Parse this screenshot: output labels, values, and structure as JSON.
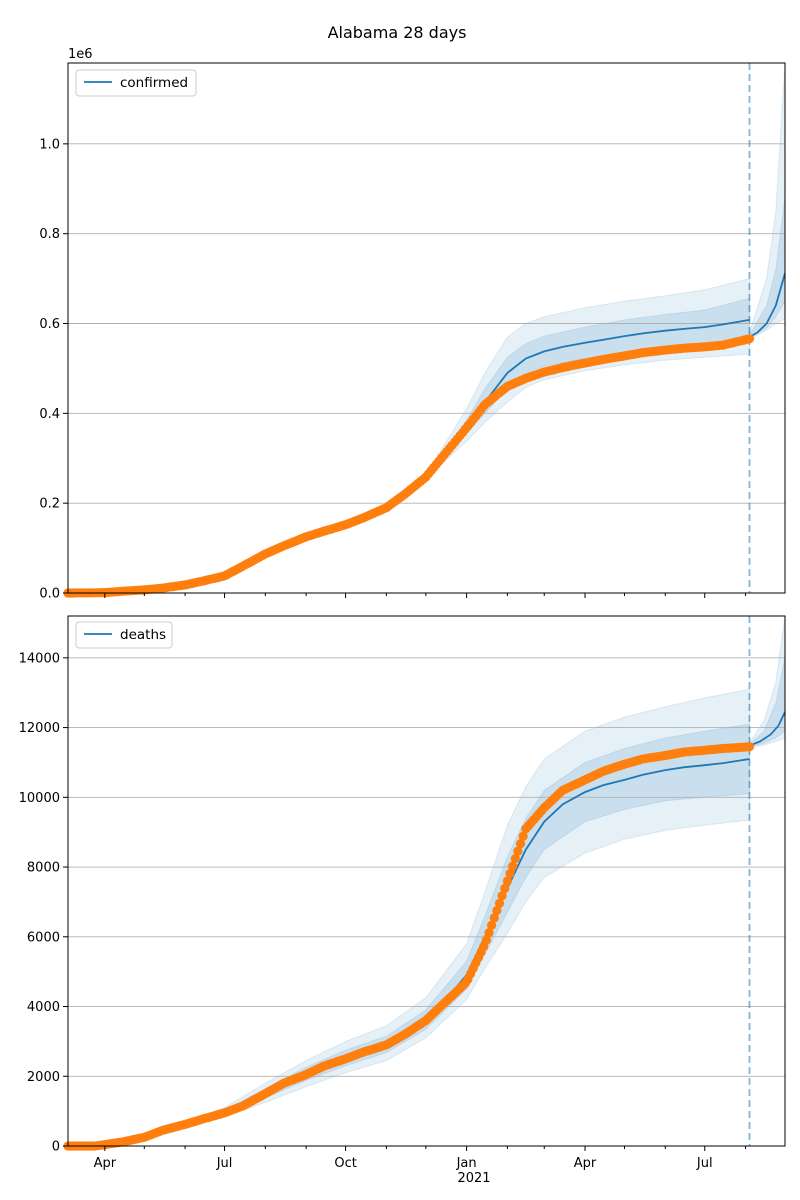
{
  "figure_title": "Alabama 28 days",
  "colors": {
    "model": "#1f77b4",
    "observed": "#ff7f0e",
    "band": "#1f77b4",
    "grid": "#b0b0b0",
    "forecast_line": "#1f77b4"
  },
  "x_axis": {
    "ticks": [
      {
        "date": "2020-04-01",
        "label": "Apr"
      },
      {
        "date": "2020-07-01",
        "label": "Jul"
      },
      {
        "date": "2020-10-01",
        "label": "Oct"
      },
      {
        "date": "2021-01-01",
        "label": "Jan"
      },
      {
        "date": "2021-04-01",
        "label": "Apr"
      },
      {
        "date": "2021-07-01",
        "label": "Jul"
      }
    ],
    "year_label": "2021",
    "xlim": [
      "2020-03-04",
      "2021-08-31"
    ],
    "forecast_start": "2021-08-04"
  },
  "chart_data": [
    {
      "type": "line",
      "legend": "confirmed",
      "legend_position": "top-left",
      "offset_label": "1e6",
      "grid": true,
      "ylim": [
        0,
        1180000
      ],
      "yticks": [
        {
          "value": 0,
          "label": "0.0"
        },
        {
          "value": 200000,
          "label": "0.2"
        },
        {
          "value": 400000,
          "label": "0.4"
        },
        {
          "value": 600000,
          "label": "0.6"
        },
        {
          "value": 800000,
          "label": "0.8"
        },
        {
          "value": 1000000,
          "label": "1.0"
        }
      ],
      "observed": [
        [
          "2020-03-04",
          0
        ],
        [
          "2020-03-20",
          300
        ],
        [
          "2020-04-01",
          1000
        ],
        [
          "2020-04-15",
          4000
        ],
        [
          "2020-05-01",
          7000
        ],
        [
          "2020-05-15",
          11000
        ],
        [
          "2020-06-01",
          18000
        ],
        [
          "2020-06-15",
          27000
        ],
        [
          "2020-07-01",
          38000
        ],
        [
          "2020-07-15",
          60000
        ],
        [
          "2020-08-01",
          87000
        ],
        [
          "2020-08-15",
          105000
        ],
        [
          "2020-09-01",
          125000
        ],
        [
          "2020-09-15",
          138000
        ],
        [
          "2020-10-01",
          152000
        ],
        [
          "2020-10-15",
          168000
        ],
        [
          "2020-11-01",
          190000
        ],
        [
          "2020-11-15",
          220000
        ],
        [
          "2020-12-01",
          258000
        ],
        [
          "2020-12-15",
          308000
        ],
        [
          "2021-01-01",
          368000
        ],
        [
          "2021-01-15",
          420000
        ],
        [
          "2021-02-01",
          460000
        ],
        [
          "2021-02-15",
          478000
        ],
        [
          "2021-03-01",
          492000
        ],
        [
          "2021-03-15",
          502000
        ],
        [
          "2021-04-01",
          512000
        ],
        [
          "2021-04-15",
          520000
        ],
        [
          "2021-05-01",
          528000
        ],
        [
          "2021-05-15",
          535000
        ],
        [
          "2021-06-01",
          541000
        ],
        [
          "2021-06-15",
          545000
        ],
        [
          "2021-07-01",
          548000
        ],
        [
          "2021-07-15",
          552000
        ],
        [
          "2021-08-04",
          566000
        ]
      ],
      "model": [
        [
          "2020-03-04",
          0
        ],
        [
          "2020-03-20",
          300
        ],
        [
          "2020-04-01",
          1000
        ],
        [
          "2020-04-15",
          4000
        ],
        [
          "2020-05-01",
          7000
        ],
        [
          "2020-05-15",
          11000
        ],
        [
          "2020-06-01",
          18000
        ],
        [
          "2020-06-15",
          27000
        ],
        [
          "2020-07-01",
          38000
        ],
        [
          "2020-07-15",
          60000
        ],
        [
          "2020-08-01",
          87000
        ],
        [
          "2020-08-15",
          105000
        ],
        [
          "2020-09-01",
          125000
        ],
        [
          "2020-09-15",
          138000
        ],
        [
          "2020-10-01",
          152000
        ],
        [
          "2020-10-15",
          168000
        ],
        [
          "2020-11-01",
          190000
        ],
        [
          "2020-11-15",
          220000
        ],
        [
          "2020-12-01",
          258000
        ],
        [
          "2020-12-15",
          308000
        ],
        [
          "2021-01-01",
          368000
        ],
        [
          "2021-01-15",
          425000
        ],
        [
          "2021-02-01",
          490000
        ],
        [
          "2021-02-15",
          522000
        ],
        [
          "2021-03-01",
          538000
        ],
        [
          "2021-03-15",
          548000
        ],
        [
          "2021-04-01",
          557000
        ],
        [
          "2021-04-15",
          564000
        ],
        [
          "2021-05-01",
          572000
        ],
        [
          "2021-05-15",
          578000
        ],
        [
          "2021-06-01",
          584000
        ],
        [
          "2021-06-15",
          588000
        ],
        [
          "2021-07-01",
          592000
        ],
        [
          "2021-07-15",
          598000
        ],
        [
          "2021-08-04",
          608000
        ]
      ],
      "forecast": [
        [
          "2021-08-04",
          570000
        ],
        [
          "2021-08-10",
          580000
        ],
        [
          "2021-08-17",
          600000
        ],
        [
          "2021-08-24",
          640000
        ],
        [
          "2021-08-31",
          712000
        ]
      ],
      "bands": {
        "inner": [
          [
            "2020-12-01",
            258000,
            258000
          ],
          [
            "2020-12-15",
            302000,
            314000
          ],
          [
            "2021-01-01",
            355000,
            385000
          ],
          [
            "2021-01-15",
            400000,
            455000
          ],
          [
            "2021-02-01",
            455000,
            525000
          ],
          [
            "2021-02-15",
            490000,
            555000
          ],
          [
            "2021-03-01",
            505000,
            572000
          ],
          [
            "2021-04-01",
            522000,
            592000
          ],
          [
            "2021-05-01",
            535000,
            608000
          ],
          [
            "2021-06-01",
            545000,
            620000
          ],
          [
            "2021-07-01",
            552000,
            630000
          ],
          [
            "2021-08-04",
            560000,
            656000
          ]
        ],
        "outer": [
          [
            "2020-11-01",
            188000,
            192000
          ],
          [
            "2020-12-01",
            252000,
            265000
          ],
          [
            "2020-12-15",
            292000,
            330000
          ],
          [
            "2021-01-01",
            338000,
            410000
          ],
          [
            "2021-01-15",
            380000,
            490000
          ],
          [
            "2021-02-01",
            425000,
            570000
          ],
          [
            "2021-02-15",
            458000,
            600000
          ],
          [
            "2021-03-01",
            475000,
            615000
          ],
          [
            "2021-04-01",
            495000,
            635000
          ],
          [
            "2021-05-01",
            508000,
            650000
          ],
          [
            "2021-06-01",
            518000,
            662000
          ],
          [
            "2021-07-01",
            525000,
            675000
          ],
          [
            "2021-08-04",
            532000,
            700000
          ]
        ],
        "forecast_inner": [
          [
            "2021-08-04",
            568000,
            574000
          ],
          [
            "2021-08-17",
            590000,
            640000
          ],
          [
            "2021-08-24",
            615000,
            720000
          ],
          [
            "2021-08-31",
            650000,
            880000
          ]
        ],
        "forecast_outer": [
          [
            "2021-08-04",
            565000,
            580000
          ],
          [
            "2021-08-17",
            585000,
            700000
          ],
          [
            "2021-08-24",
            600000,
            850000
          ],
          [
            "2021-08-31",
            610000,
            1180000
          ]
        ]
      }
    },
    {
      "type": "line",
      "legend": "deaths",
      "legend_position": "top-left",
      "grid": true,
      "ylim": [
        0,
        15200
      ],
      "yticks": [
        {
          "value": 0,
          "label": "0"
        },
        {
          "value": 2000,
          "label": "2000"
        },
        {
          "value": 4000,
          "label": "4000"
        },
        {
          "value": 6000,
          "label": "6000"
        },
        {
          "value": 8000,
          "label": "8000"
        },
        {
          "value": 10000,
          "label": "10000"
        },
        {
          "value": 12000,
          "label": "12000"
        },
        {
          "value": 14000,
          "label": "14000"
        }
      ],
      "observed": [
        [
          "2020-03-04",
          0
        ],
        [
          "2020-03-25",
          0
        ],
        [
          "2020-04-01",
          40
        ],
        [
          "2020-04-15",
          120
        ],
        [
          "2020-05-01",
          250
        ],
        [
          "2020-05-15",
          450
        ],
        [
          "2020-06-01",
          620
        ],
        [
          "2020-06-15",
          780
        ],
        [
          "2020-07-01",
          950
        ],
        [
          "2020-07-15",
          1150
        ],
        [
          "2020-08-01",
          1500
        ],
        [
          "2020-08-15",
          1800
        ],
        [
          "2020-09-01",
          2050
        ],
        [
          "2020-09-15",
          2300
        ],
        [
          "2020-10-01",
          2500
        ],
        [
          "2020-10-15",
          2700
        ],
        [
          "2020-11-01",
          2900
        ],
        [
          "2020-11-15",
          3200
        ],
        [
          "2020-12-01",
          3600
        ],
        [
          "2020-12-15",
          4100
        ],
        [
          "2021-01-01",
          4700
        ],
        [
          "2021-01-15",
          5800
        ],
        [
          "2021-02-01",
          7600
        ],
        [
          "2021-02-15",
          9100
        ],
        [
          "2021-03-01",
          9700
        ],
        [
          "2021-03-15",
          10200
        ],
        [
          "2021-04-01",
          10500
        ],
        [
          "2021-04-15",
          10750
        ],
        [
          "2021-05-01",
          10950
        ],
        [
          "2021-05-15",
          11100
        ],
        [
          "2021-06-01",
          11200
        ],
        [
          "2021-06-15",
          11300
        ],
        [
          "2021-07-01",
          11350
        ],
        [
          "2021-07-15",
          11400
        ],
        [
          "2021-08-04",
          11450
        ]
      ],
      "model": [
        [
          "2020-03-04",
          0
        ],
        [
          "2020-03-25",
          0
        ],
        [
          "2020-04-01",
          40
        ],
        [
          "2020-04-15",
          120
        ],
        [
          "2020-05-01",
          250
        ],
        [
          "2020-05-15",
          450
        ],
        [
          "2020-06-01",
          620
        ],
        [
          "2020-06-15",
          780
        ],
        [
          "2020-07-01",
          950
        ],
        [
          "2020-07-15",
          1150
        ],
        [
          "2020-08-01",
          1500
        ],
        [
          "2020-08-15",
          1800
        ],
        [
          "2020-09-01",
          2050
        ],
        [
          "2020-09-15",
          2300
        ],
        [
          "2020-10-01",
          2500
        ],
        [
          "2020-10-15",
          2700
        ],
        [
          "2020-11-01",
          2900
        ],
        [
          "2020-11-15",
          3200
        ],
        [
          "2020-12-01",
          3600
        ],
        [
          "2020-12-15",
          4150
        ],
        [
          "2021-01-01",
          4900
        ],
        [
          "2021-01-15",
          6000
        ],
        [
          "2021-02-01",
          7400
        ],
        [
          "2021-02-15",
          8500
        ],
        [
          "2021-03-01",
          9300
        ],
        [
          "2021-03-15",
          9800
        ],
        [
          "2021-04-01",
          10150
        ],
        [
          "2021-04-15",
          10350
        ],
        [
          "2021-05-01",
          10500
        ],
        [
          "2021-05-15",
          10650
        ],
        [
          "2021-06-01",
          10780
        ],
        [
          "2021-06-15",
          10860
        ],
        [
          "2021-07-01",
          10920
        ],
        [
          "2021-07-15",
          10980
        ],
        [
          "2021-08-04",
          11100
        ]
      ],
      "forecast": [
        [
          "2021-08-04",
          11480
        ],
        [
          "2021-08-12",
          11600
        ],
        [
          "2021-08-20",
          11800
        ],
        [
          "2021-08-26",
          12050
        ],
        [
          "2021-08-31",
          12450
        ]
      ],
      "bands": {
        "inner": [
          [
            "2020-05-01",
            240,
            260
          ],
          [
            "2020-07-01",
            900,
            1020
          ],
          [
            "2020-08-01",
            1380,
            1650
          ],
          [
            "2020-09-01",
            1880,
            2260
          ],
          [
            "2020-10-01",
            2300,
            2750
          ],
          [
            "2020-11-01",
            2680,
            3150
          ],
          [
            "2020-12-01",
            3350,
            3900
          ],
          [
            "2021-01-01",
            4500,
            5300
          ],
          [
            "2021-01-15",
            5500,
            6600
          ],
          [
            "2021-02-01",
            6700,
            8300
          ],
          [
            "2021-02-15",
            7700,
            9400
          ],
          [
            "2021-03-01",
            8500,
            10200
          ],
          [
            "2021-04-01",
            9300,
            11000
          ],
          [
            "2021-05-01",
            9650,
            11400
          ],
          [
            "2021-06-01",
            9900,
            11700
          ],
          [
            "2021-07-01",
            10000,
            11900
          ],
          [
            "2021-08-04",
            10100,
            12100
          ]
        ],
        "outer": [
          [
            "2020-05-01",
            230,
            270
          ],
          [
            "2020-07-01",
            850,
            1100
          ],
          [
            "2020-08-01",
            1250,
            1800
          ],
          [
            "2020-09-01",
            1700,
            2450
          ],
          [
            "2020-10-01",
            2100,
            3000
          ],
          [
            "2020-11-01",
            2450,
            3450
          ],
          [
            "2020-12-01",
            3100,
            4250
          ],
          [
            "2021-01-01",
            4200,
            5800
          ],
          [
            "2021-01-15",
            5100,
            7300
          ],
          [
            "2021-02-01",
            6100,
            9200
          ],
          [
            "2021-02-15",
            7000,
            10300
          ],
          [
            "2021-03-01",
            7700,
            11100
          ],
          [
            "2021-04-01",
            8400,
            11900
          ],
          [
            "2021-05-01",
            8800,
            12300
          ],
          [
            "2021-06-01",
            9050,
            12600
          ],
          [
            "2021-07-01",
            9200,
            12850
          ],
          [
            "2021-08-04",
            9350,
            13100
          ]
        ],
        "forecast_inner": [
          [
            "2021-08-04",
            11450,
            11520
          ],
          [
            "2021-08-15",
            11550,
            11900
          ],
          [
            "2021-08-24",
            11700,
            12700
          ],
          [
            "2021-08-31",
            11900,
            14000
          ]
        ],
        "forecast_outer": [
          [
            "2021-08-04",
            11420,
            11560
          ],
          [
            "2021-08-15",
            11500,
            12200
          ],
          [
            "2021-08-24",
            11600,
            13300
          ],
          [
            "2021-08-31",
            11700,
            15200
          ]
        ]
      }
    }
  ]
}
